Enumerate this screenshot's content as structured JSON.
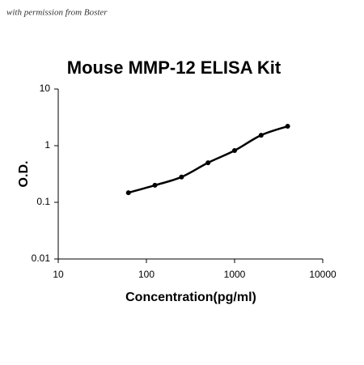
{
  "chart_data": {
    "type": "line",
    "annotation": "with permission from Boster",
    "title": "Mouse MMP-12 ELISA Kit",
    "xlabel": "Concentration(pg/ml)",
    "ylabel": "O.D.",
    "xscale": "log",
    "yscale": "log",
    "xlim": [
      10,
      10000
    ],
    "xticks": [
      10,
      100,
      1000,
      10000
    ],
    "ylim": [
      0.01,
      10
    ],
    "yticks": [
      0.01,
      0.1,
      1,
      10
    ],
    "series": [
      {
        "color": "#000000",
        "x": [
          62.5,
          125,
          250,
          500,
          1000,
          2000,
          4000
        ],
        "values": [
          0.148,
          0.2,
          0.28,
          0.5,
          0.82,
          1.53,
          2.2
        ]
      }
    ]
  }
}
